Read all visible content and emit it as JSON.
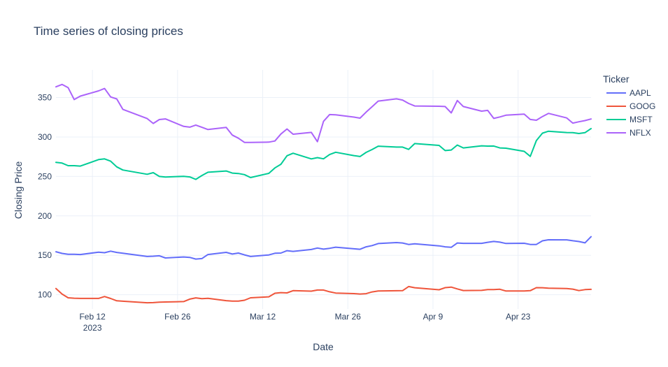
{
  "chart_data": {
    "type": "line",
    "title": "Time series of closing prices",
    "xlabel": "Date",
    "ylabel": "Closing Price",
    "legend_title": "Ticker",
    "legend_position": "top-right",
    "grid": true,
    "x_type": "date",
    "xlim": [
      "2023-02-06",
      "2023-05-05"
    ],
    "ylim": [
      82,
      385
    ],
    "x_ticks": [
      {
        "date": "2023-02-12",
        "label": "Feb 12",
        "sublabel": "2023"
      },
      {
        "date": "2023-02-26",
        "label": "Feb 26"
      },
      {
        "date": "2023-03-12",
        "label": "Mar 12"
      },
      {
        "date": "2023-03-26",
        "label": "Mar 26"
      },
      {
        "date": "2023-04-09",
        "label": "Apr 9"
      },
      {
        "date": "2023-04-23",
        "label": "Apr 23"
      }
    ],
    "y_ticks": [
      100,
      150,
      200,
      250,
      300,
      350
    ],
    "x": [
      "2023-02-06",
      "2023-02-07",
      "2023-02-08",
      "2023-02-09",
      "2023-02-10",
      "2023-02-13",
      "2023-02-14",
      "2023-02-15",
      "2023-02-16",
      "2023-02-17",
      "2023-02-21",
      "2023-02-22",
      "2023-02-23",
      "2023-02-24",
      "2023-02-27",
      "2023-02-28",
      "2023-03-01",
      "2023-03-02",
      "2023-03-03",
      "2023-03-06",
      "2023-03-07",
      "2023-03-08",
      "2023-03-09",
      "2023-03-10",
      "2023-03-13",
      "2023-03-14",
      "2023-03-15",
      "2023-03-16",
      "2023-03-17",
      "2023-03-20",
      "2023-03-21",
      "2023-03-22",
      "2023-03-23",
      "2023-03-24",
      "2023-03-27",
      "2023-03-28",
      "2023-03-29",
      "2023-03-30",
      "2023-03-31",
      "2023-04-03",
      "2023-04-04",
      "2023-04-05",
      "2023-04-06",
      "2023-04-10",
      "2023-04-11",
      "2023-04-12",
      "2023-04-13",
      "2023-04-14",
      "2023-04-17",
      "2023-04-18",
      "2023-04-19",
      "2023-04-20",
      "2023-04-21",
      "2023-04-24",
      "2023-04-25",
      "2023-04-26",
      "2023-04-27",
      "2023-04-28",
      "2023-05-01",
      "2023-05-02",
      "2023-05-03",
      "2023-05-04",
      "2023-05-05"
    ],
    "series": [
      {
        "name": "AAPL",
        "color": "#636efa",
        "values": [
          154.6,
          152.4,
          151.4,
          151.3,
          151.0,
          153.9,
          153.3,
          155.3,
          153.7,
          152.6,
          148.5,
          148.9,
          149.4,
          146.7,
          147.9,
          147.4,
          145.3,
          145.9,
          151.0,
          153.8,
          151.6,
          152.9,
          150.6,
          148.5,
          150.5,
          152.6,
          152.9,
          155.9,
          155.0,
          157.4,
          159.3,
          157.8,
          158.9,
          160.3,
          158.3,
          157.7,
          160.8,
          162.4,
          164.9,
          166.2,
          165.6,
          163.8,
          164.7,
          162.0,
          160.8,
          160.1,
          165.6,
          165.2,
          165.2,
          166.5,
          167.6,
          166.7,
          165.0,
          165.3,
          163.8,
          163.8,
          168.4,
          169.7,
          169.6,
          168.5,
          167.5,
          165.8,
          173.6
        ]
      },
      {
        "name": "GOOG",
        "color": "#ef553b",
        "values": [
          108.0,
          101.0,
          96.2,
          95.6,
          95.4,
          95.4,
          97.8,
          95.3,
          92.4,
          91.8,
          89.9,
          90.1,
          90.6,
          90.9,
          91.4,
          94.5,
          96.1,
          95.0,
          95.5,
          92.5,
          91.9,
          92.0,
          93.1,
          96.2,
          97.4,
          101.9,
          102.7,
          102.4,
          105.2,
          104.6,
          106.0,
          106.0,
          103.8,
          102.2,
          101.5,
          101.0,
          101.4,
          103.6,
          104.8,
          105.1,
          105.2,
          110.4,
          108.9,
          106.4,
          109.0,
          109.7,
          107.4,
          105.4,
          105.6,
          106.5,
          106.6,
          107.0,
          104.8,
          104.9,
          105.2,
          109.0,
          108.9,
          108.3,
          107.9,
          107.2,
          105.3,
          106.5,
          106.9
        ]
      },
      {
        "name": "MSFT",
        "color": "#00cc96",
        "values": [
          267.8,
          266.9,
          263.6,
          263.6,
          263.1,
          271.3,
          272.2,
          269.3,
          262.1,
          258.1,
          252.7,
          254.8,
          250.0,
          249.2,
          250.2,
          249.4,
          246.3,
          251.1,
          255.3,
          256.9,
          254.2,
          253.7,
          252.3,
          248.6,
          253.9,
          260.8,
          265.4,
          276.2,
          279.4,
          272.2,
          273.8,
          272.3,
          277.7,
          280.6,
          276.4,
          275.2,
          280.5,
          284.1,
          288.3,
          287.2,
          287.2,
          284.3,
          291.6,
          289.3,
          282.8,
          283.5,
          289.8,
          286.1,
          288.8,
          288.4,
          288.5,
          286.1,
          285.8,
          281.8,
          275.4,
          295.4,
          304.8,
          307.3,
          305.6,
          305.4,
          304.4,
          305.4,
          310.7
        ]
      },
      {
        "name": "NFLX",
        "color": "#ab63fa",
        "values": [
          363.6,
          366.6,
          362.5,
          347.4,
          351.8,
          358.4,
          361.4,
          350.7,
          348.2,
          335.0,
          323.3,
          317.1,
          322.1,
          322.9,
          313.4,
          312.4,
          315.1,
          312.3,
          309.4,
          312.2,
          302.4,
          298.4,
          293.1,
          293.0,
          293.5,
          294.9,
          303.8,
          310.1,
          303.5,
          305.8,
          294.0,
          319.8,
          328.4,
          328.1,
          325.2,
          323.9,
          331.5,
          338.4,
          345.5,
          348.3,
          346.8,
          342.5,
          339.3,
          338.9,
          338.6,
          330.5,
          346.2,
          338.6,
          332.7,
          333.7,
          323.5,
          325.4,
          327.6,
          329.0,
          322.2,
          321.2,
          325.9,
          329.9,
          324.1,
          317.6,
          319.3,
          320.8,
          322.8
        ]
      }
    ]
  }
}
